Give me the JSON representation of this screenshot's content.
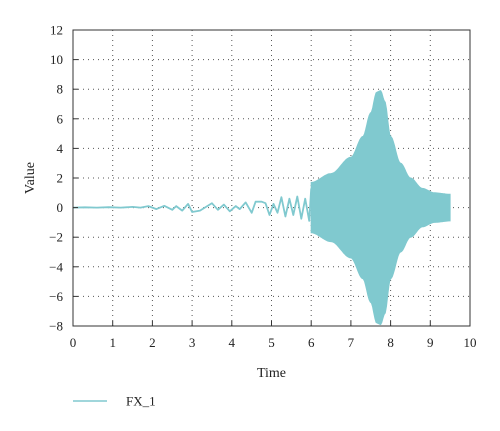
{
  "chart_data": {
    "type": "line",
    "title": "",
    "xlabel": "Time",
    "ylabel": "Value",
    "xlim": [
      0,
      10
    ],
    "ylim": [
      -8,
      12
    ],
    "xticks": [
      "0",
      "1",
      "2",
      "3",
      "4",
      "5",
      "6",
      "7",
      "8",
      "9",
      "10"
    ],
    "yticks": [
      "12",
      "10",
      "8",
      "6",
      "4",
      "2",
      "0",
      "−2",
      "−4",
      "−6",
      "−8"
    ],
    "grid": true,
    "grid_style": "dotted",
    "legend_position": "bottom-left",
    "series": [
      {
        "name": "FX_1",
        "color": "#80c9cf",
        "points": [
          [
            0.0,
            0.0
          ],
          [
            0.3,
            0.02
          ],
          [
            0.6,
            0.0
          ],
          [
            0.9,
            0.03
          ],
          [
            1.2,
            0.0
          ],
          [
            1.5,
            0.05
          ],
          [
            1.7,
            0.0
          ],
          [
            1.9,
            0.1
          ],
          [
            2.1,
            -0.1
          ],
          [
            2.3,
            0.12
          ],
          [
            2.5,
            -0.15
          ],
          [
            2.6,
            0.1
          ],
          [
            2.75,
            -0.2
          ],
          [
            2.9,
            0.25
          ],
          [
            3.0,
            -0.3
          ],
          [
            3.2,
            -0.2
          ],
          [
            3.35,
            0.05
          ],
          [
            3.5,
            0.3
          ],
          [
            3.65,
            -0.15
          ],
          [
            3.8,
            0.2
          ],
          [
            3.95,
            -0.25
          ],
          [
            4.1,
            0.1
          ],
          [
            4.2,
            -0.1
          ],
          [
            4.35,
            0.35
          ],
          [
            4.5,
            -0.35
          ],
          [
            4.6,
            0.4
          ],
          [
            4.75,
            0.4
          ],
          [
            4.85,
            0.3
          ],
          [
            4.95,
            -0.5
          ],
          [
            5.05,
            0.25
          ],
          [
            5.15,
            -0.35
          ],
          [
            5.25,
            0.7
          ],
          [
            5.35,
            -0.6
          ],
          [
            5.45,
            0.6
          ],
          [
            5.55,
            -0.5
          ],
          [
            5.65,
            0.75
          ],
          [
            5.75,
            -0.75
          ],
          [
            5.85,
            0.6
          ],
          [
            5.95,
            -0.9
          ],
          [
            6.0,
            1.3
          ]
        ],
        "oscillation_envelope": {
          "x": [
            6.0,
            6.5,
            7.0,
            7.3,
            7.5,
            7.65,
            7.75,
            7.85,
            8.0,
            8.25,
            8.5,
            8.8,
            9.1,
            9.5
          ],
          "upper": [
            1.7,
            2.3,
            3.4,
            4.8,
            6.4,
            7.8,
            7.9,
            7.2,
            4.8,
            3.0,
            2.0,
            1.3,
            1.0,
            0.9
          ],
          "lower": [
            -1.7,
            -2.3,
            -3.4,
            -4.8,
            -6.4,
            -7.8,
            -7.9,
            -7.2,
            -4.8,
            -3.0,
            -2.0,
            -1.3,
            -1.0,
            -0.9
          ]
        }
      }
    ]
  }
}
